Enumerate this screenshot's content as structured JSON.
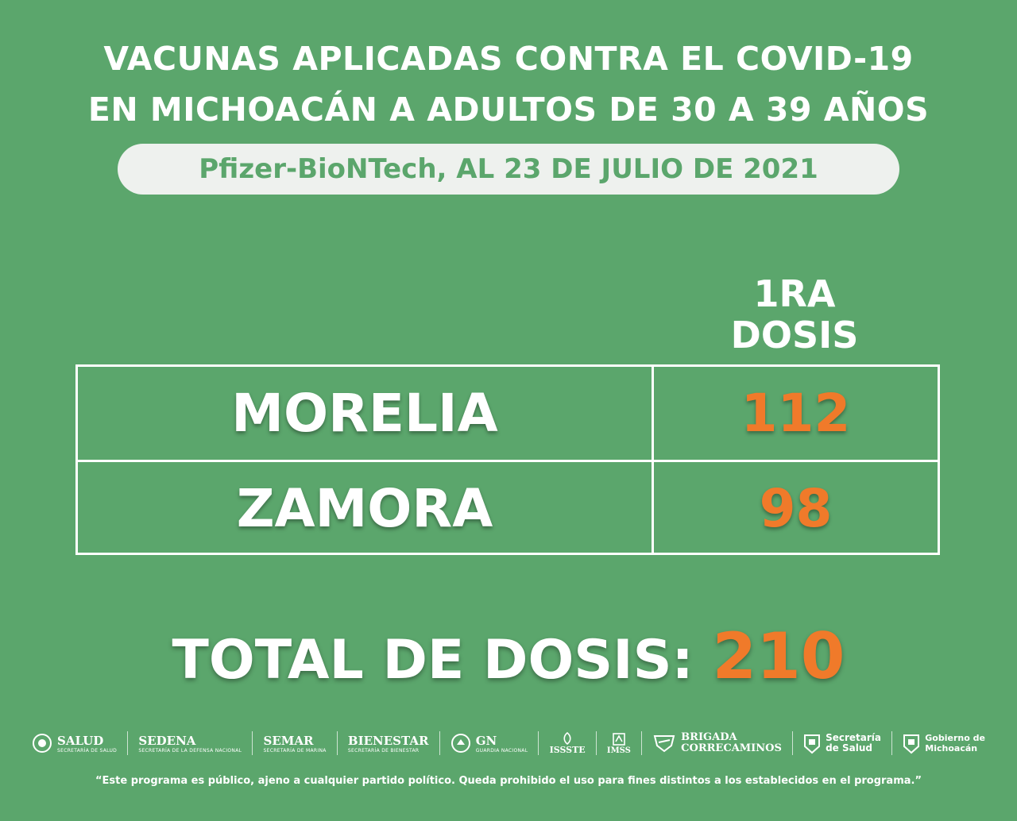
{
  "header": {
    "line1": "VACUNAS APLICADAS CONTRA EL COVID-19",
    "line2": "EN MICHOACÁN A ADULTOS DE 30 A 39 AÑOS",
    "subtitle": "Pfizer-BioNTech, AL 23 DE JULIO DE 2021"
  },
  "table": {
    "column_header_line1": "1RA",
    "column_header_line2": "DOSIS",
    "rows": [
      {
        "city": "MORELIA",
        "value": "112"
      },
      {
        "city": "ZAMORA",
        "value": "98"
      }
    ]
  },
  "total": {
    "label": "TOTAL DE DOSIS:",
    "value": "210"
  },
  "logos": {
    "salud": "SALUD",
    "salud_sub": "SECRETARÍA DE SALUD",
    "sedena": "SEDENA",
    "sedena_sub": "SECRETARÍA DE LA DEFENSA NACIONAL",
    "semar": "SEMAR",
    "semar_sub": "SECRETARÍA DE MARINA",
    "bienestar": "BIENESTAR",
    "bienestar_sub": "SECRETARÍA DE BIENESTAR",
    "gn": "GN",
    "gn_sub": "GUARDIA NACIONAL",
    "issste": "ISSSTE",
    "imss": "IMSS",
    "brigada_line1": "BRIGADA",
    "brigada_line2": "CORRECAMINOS",
    "secretaria_line1": "Secretaría",
    "secretaria_line2": "de Salud",
    "gobierno_line1": "Gobierno de",
    "gobierno_line2": "Michoacán"
  },
  "footer": {
    "disclaimer": "“Este programa es público, ajeno a cualquier partido político. Queda prohibido el uso para fines distintos a los establecidos en el programa.”"
  },
  "colors": {
    "background": "#5ba66c",
    "accent": "#f07a2a",
    "pill": "#eef1ee"
  }
}
